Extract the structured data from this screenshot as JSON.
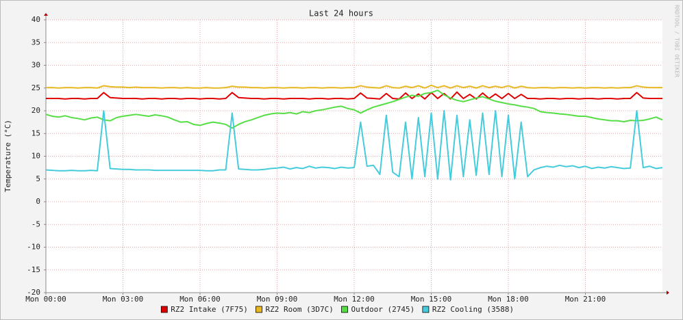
{
  "chart_data": {
    "type": "line",
    "title": "Last 24 hours",
    "y_label": "Temperature (°C)",
    "watermark": "RRDTOOL / TOBI OETIKER",
    "xlim": [
      0,
      24
    ],
    "ylim": [
      -20,
      40
    ],
    "grid": true,
    "yticks": [
      -20,
      -15,
      -10,
      -5,
      0,
      5,
      10,
      15,
      20,
      25,
      30,
      35,
      40
    ],
    "xticks": [
      {
        "value": 0,
        "label": "Mon 00:00"
      },
      {
        "value": 3,
        "label": "Mon 03:00"
      },
      {
        "value": 6,
        "label": "Mon 06:00"
      },
      {
        "value": 9,
        "label": "Mon 09:00"
      },
      {
        "value": 12,
        "label": "Mon 12:00"
      },
      {
        "value": 15,
        "label": "Mon 15:00"
      },
      {
        "value": 18,
        "label": "Mon 18:00"
      },
      {
        "value": 21,
        "label": "Mon 21:00"
      }
    ],
    "x": [
      0,
      0.25,
      0.5,
      0.75,
      1,
      1.25,
      1.5,
      1.75,
      2,
      2.25,
      2.5,
      2.75,
      3,
      3.25,
      3.5,
      3.75,
      4,
      4.25,
      4.5,
      4.75,
      5,
      5.25,
      5.5,
      5.75,
      6,
      6.25,
      6.5,
      6.75,
      7,
      7.25,
      7.5,
      7.75,
      8,
      8.25,
      8.5,
      8.75,
      9,
      9.25,
      9.5,
      9.75,
      10,
      10.25,
      10.5,
      10.75,
      11,
      11.25,
      11.5,
      11.75,
      12,
      12.25,
      12.5,
      12.75,
      13,
      13.25,
      13.5,
      13.75,
      14,
      14.25,
      14.5,
      14.75,
      15,
      15.25,
      15.5,
      15.75,
      16,
      16.25,
      16.5,
      16.75,
      17,
      17.25,
      17.5,
      17.75,
      18,
      18.25,
      18.5,
      18.75,
      19,
      19.25,
      19.5,
      19.75,
      20,
      20.25,
      20.5,
      20.75,
      21,
      21.25,
      21.5,
      21.75,
      22,
      22.25,
      22.5,
      22.75,
      23,
      23.25,
      23.5,
      23.75,
      24
    ],
    "series": [
      {
        "name": "RZ2 Intake (7F75)",
        "color": "#e00000",
        "values": [
          22.7,
          22.7,
          22.7,
          22.6,
          22.7,
          22.7,
          22.6,
          22.7,
          22.7,
          24.0,
          22.9,
          22.8,
          22.7,
          22.7,
          22.7,
          22.6,
          22.7,
          22.7,
          22.6,
          22.7,
          22.7,
          22.6,
          22.7,
          22.7,
          22.6,
          22.7,
          22.7,
          22.6,
          22.7,
          24.0,
          22.9,
          22.8,
          22.7,
          22.7,
          22.6,
          22.7,
          22.7,
          22.6,
          22.7,
          22.7,
          22.7,
          22.6,
          22.7,
          22.7,
          22.6,
          22.7,
          22.7,
          22.6,
          22.7,
          23.9,
          22.8,
          22.7,
          22.6,
          23.8,
          22.7,
          22.6,
          23.9,
          22.7,
          23.7,
          22.6,
          24.0,
          22.7,
          23.8,
          22.6,
          24.1,
          22.7,
          23.6,
          22.6,
          23.9,
          22.7,
          23.7,
          22.7,
          23.8,
          22.7,
          23.6,
          22.7,
          22.7,
          22.6,
          22.7,
          22.7,
          22.6,
          22.7,
          22.7,
          22.6,
          22.7,
          22.7,
          22.6,
          22.7,
          22.7,
          22.6,
          22.7,
          22.7,
          24.0,
          22.8,
          22.7,
          22.7,
          22.7
        ]
      },
      {
        "name": "RZ2 Room (3D7C)",
        "color": "#e8b820",
        "values": [
          25.1,
          25.1,
          25.0,
          25.1,
          25.1,
          25.0,
          25.1,
          25.1,
          25.0,
          25.5,
          25.3,
          25.2,
          25.2,
          25.1,
          25.2,
          25.1,
          25.1,
          25.1,
          25.0,
          25.1,
          25.1,
          25.0,
          25.1,
          25.0,
          25.0,
          25.1,
          25.0,
          25.0,
          25.1,
          25.4,
          25.2,
          25.2,
          25.1,
          25.1,
          25.0,
          25.1,
          25.1,
          25.0,
          25.1,
          25.1,
          25.0,
          25.1,
          25.1,
          25.0,
          25.1,
          25.1,
          25.0,
          25.1,
          25.1,
          25.5,
          25.2,
          25.1,
          25.0,
          25.5,
          25.1,
          25.0,
          25.4,
          25.1,
          25.5,
          25.0,
          25.6,
          25.1,
          25.5,
          25.0,
          25.5,
          25.1,
          25.4,
          25.0,
          25.5,
          25.1,
          25.4,
          25.1,
          25.5,
          25.0,
          25.4,
          25.1,
          25.0,
          25.1,
          25.1,
          25.0,
          25.1,
          25.1,
          25.0,
          25.1,
          25.0,
          25.1,
          25.1,
          25.0,
          25.1,
          25.0,
          25.1,
          25.1,
          25.5,
          25.2,
          25.1,
          25.1,
          25.1
        ]
      },
      {
        "name": "Outdoor (2745)",
        "color": "#55dd44",
        "values": [
          19.2,
          18.8,
          18.6,
          18.9,
          18.5,
          18.3,
          18.0,
          18.4,
          18.6,
          18.0,
          17.8,
          18.5,
          18.8,
          19.0,
          19.2,
          19.0,
          18.8,
          19.1,
          18.9,
          18.6,
          18.0,
          17.5,
          17.6,
          17.0,
          16.8,
          17.2,
          17.5,
          17.3,
          17.0,
          16.2,
          17.0,
          17.6,
          18.0,
          18.5,
          19.0,
          19.3,
          19.5,
          19.4,
          19.6,
          19.3,
          19.8,
          19.6,
          20.0,
          20.2,
          20.5,
          20.8,
          21.0,
          20.5,
          20.2,
          19.5,
          20.2,
          20.8,
          21.2,
          21.6,
          22.0,
          22.5,
          23.0,
          23.4,
          23.2,
          23.8,
          24.0,
          24.5,
          23.5,
          22.8,
          22.3,
          22.0,
          22.4,
          22.8,
          23.1,
          22.6,
          22.1,
          21.8,
          21.5,
          21.3,
          21.0,
          20.8,
          20.5,
          19.8,
          19.6,
          19.5,
          19.3,
          19.2,
          19.0,
          18.8,
          18.8,
          18.5,
          18.2,
          18.0,
          17.8,
          17.8,
          17.6,
          17.9,
          17.8,
          17.9,
          18.2,
          18.6,
          18.0
        ]
      },
      {
        "name": "RZ2 Cooling (3588)",
        "color": "#44ccdd",
        "values": [
          7.0,
          6.9,
          6.8,
          6.8,
          6.9,
          6.8,
          6.8,
          6.9,
          6.8,
          20,
          7.3,
          7.2,
          7.1,
          7.1,
          7.0,
          7.0,
          7.0,
          6.9,
          6.9,
          6.9,
          6.9,
          6.9,
          6.9,
          6.9,
          6.9,
          6.8,
          6.8,
          7.0,
          7.0,
          19.5,
          7.2,
          7.1,
          7.0,
          7.0,
          7.1,
          7.3,
          7.4,
          7.6,
          7.2,
          7.5,
          7.3,
          7.8,
          7.4,
          7.6,
          7.5,
          7.3,
          7.6,
          7.4,
          7.5,
          17.5,
          7.8,
          8.0,
          6.0,
          19,
          6.5,
          5.5,
          17.5,
          5.0,
          18.5,
          5.5,
          19.5,
          5.0,
          20,
          4.8,
          19,
          5.5,
          18,
          5.8,
          19.5,
          6.0,
          20,
          5.5,
          19,
          5.0,
          17.5,
          5.5,
          7.0,
          7.5,
          7.8,
          7.6,
          8.0,
          7.7,
          7.9,
          7.5,
          7.8,
          7.3,
          7.6,
          7.4,
          7.7,
          7.5,
          7.3,
          7.4,
          20,
          7.5,
          7.8,
          7.3,
          7.5
        ]
      }
    ]
  }
}
